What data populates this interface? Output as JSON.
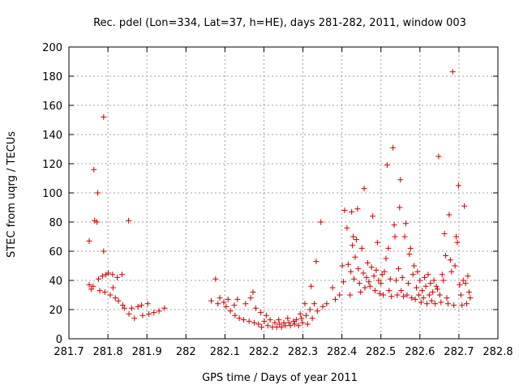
{
  "chart_data": {
    "type": "scatter",
    "title": "Rec. pdel (Lon=334, Lat=37, h=HE), days 281-282, 2011, window 003",
    "xlabel": "GPS time / Days of year 2011",
    "ylabel": "STEC from uqrg / TECUs",
    "xlim": [
      281.7,
      282.8
    ],
    "ylim": [
      0,
      200
    ],
    "x_ticks": [
      281.7,
      281.8,
      281.9,
      282.0,
      282.1,
      282.2,
      282.3,
      282.4,
      282.5,
      282.6,
      282.7,
      282.8
    ],
    "x_tick_labels": [
      "281.7",
      "281.8",
      "281.9",
      "282",
      "282.1",
      "282.2",
      "282.3",
      "282.4",
      "282.5",
      "282.6",
      "282.7",
      "282.8"
    ],
    "y_ticks": [
      0,
      20,
      40,
      60,
      80,
      100,
      120,
      140,
      160,
      180,
      200
    ],
    "y_tick_labels": [
      "0",
      "20",
      "40",
      "60",
      "80",
      "100",
      "120",
      "140",
      "160",
      "180",
      "200"
    ],
    "grid": true,
    "marker": "+",
    "color": "#cc0000",
    "points": [
      [
        281.752,
        67
      ],
      [
        281.752,
        37
      ],
      [
        281.757,
        34
      ],
      [
        281.762,
        36
      ],
      [
        281.764,
        116
      ],
      [
        281.766,
        81
      ],
      [
        281.772,
        80
      ],
      [
        281.774,
        100
      ],
      [
        281.776,
        41
      ],
      [
        281.779,
        33
      ],
      [
        281.786,
        43
      ],
      [
        281.789,
        152
      ],
      [
        281.789,
        60
      ],
      [
        281.792,
        32
      ],
      [
        281.795,
        44
      ],
      [
        281.801,
        45
      ],
      [
        281.806,
        30
      ],
      [
        281.812,
        44
      ],
      [
        281.813,
        35
      ],
      [
        281.819,
        28
      ],
      [
        281.824,
        42
      ],
      [
        281.827,
        26
      ],
      [
        281.836,
        44
      ],
      [
        281.838,
        23
      ],
      [
        281.842,
        21
      ],
      [
        281.853,
        81
      ],
      [
        281.854,
        17
      ],
      [
        281.861,
        21
      ],
      [
        281.868,
        14
      ],
      [
        281.877,
        22
      ],
      [
        281.886,
        23
      ],
      [
        281.889,
        16
      ],
      [
        281.902,
        24
      ],
      [
        281.905,
        17
      ],
      [
        281.918,
        18
      ],
      [
        281.931,
        19
      ],
      [
        281.945,
        21
      ],
      [
        282.065,
        26
      ],
      [
        282.076,
        41
      ],
      [
        282.082,
        24
      ],
      [
        282.087,
        28
      ],
      [
        282.097,
        25
      ],
      [
        282.103,
        22
      ],
      [
        282.108,
        27
      ],
      [
        282.114,
        19
      ],
      [
        282.124,
        23
      ],
      [
        282.126,
        16
      ],
      [
        282.132,
        27
      ],
      [
        282.137,
        14
      ],
      [
        282.148,
        13
      ],
      [
        282.153,
        24
      ],
      [
        282.162,
        12
      ],
      [
        282.166,
        28
      ],
      [
        282.172,
        32
      ],
      [
        282.175,
        11
      ],
      [
        282.179,
        21
      ],
      [
        282.186,
        10
      ],
      [
        282.192,
        18
      ],
      [
        282.194,
        8
      ],
      [
        282.201,
        12
      ],
      [
        282.206,
        16
      ],
      [
        282.21,
        9
      ],
      [
        282.216,
        13
      ],
      [
        282.222,
        8
      ],
      [
        282.228,
        11
      ],
      [
        282.233,
        8
      ],
      [
        282.238,
        13
      ],
      [
        282.24,
        10
      ],
      [
        282.245,
        8
      ],
      [
        282.251,
        11
      ],
      [
        282.255,
        9
      ],
      [
        282.261,
        14
      ],
      [
        282.264,
        11
      ],
      [
        282.268,
        9
      ],
      [
        282.276,
        12
      ],
      [
        282.279,
        10
      ],
      [
        282.283,
        13
      ],
      [
        282.289,
        9
      ],
      [
        282.293,
        17
      ],
      [
        282.296,
        14
      ],
      [
        282.299,
        11
      ],
      [
        282.305,
        24
      ],
      [
        282.308,
        16
      ],
      [
        282.312,
        10
      ],
      [
        282.318,
        20
      ],
      [
        282.321,
        36
      ],
      [
        282.324,
        14
      ],
      [
        282.329,
        24
      ],
      [
        282.334,
        53
      ],
      [
        282.337,
        19
      ],
      [
        282.346,
        80
      ],
      [
        282.351,
        22
      ],
      [
        282.361,
        24
      ],
      [
        282.376,
        35
      ],
      [
        282.383,
        27
      ],
      [
        282.394,
        30
      ],
      [
        282.401,
        50
      ],
      [
        282.404,
        39
      ],
      [
        282.407,
        88
      ],
      [
        282.413,
        76
      ],
      [
        282.416,
        51
      ],
      [
        282.421,
        30
      ],
      [
        282.423,
        46
      ],
      [
        282.425,
        87
      ],
      [
        282.427,
        64
      ],
      [
        282.429,
        70
      ],
      [
        282.431,
        41
      ],
      [
        282.434,
        56
      ],
      [
        282.437,
        68
      ],
      [
        282.44,
        89
      ],
      [
        282.442,
        48
      ],
      [
        282.445,
        38
      ],
      [
        282.448,
        32
      ],
      [
        282.451,
        62
      ],
      [
        282.455,
        45
      ],
      [
        282.457,
        103
      ],
      [
        282.459,
        35
      ],
      [
        282.463,
        42
      ],
      [
        282.466,
        52
      ],
      [
        282.469,
        39
      ],
      [
        282.472,
        36
      ],
      [
        282.476,
        49
      ],
      [
        282.479,
        84
      ],
      [
        282.482,
        43
      ],
      [
        282.485,
        33
      ],
      [
        282.488,
        47
      ],
      [
        282.491,
        66
      ],
      [
        282.494,
        40
      ],
      [
        282.497,
        31
      ],
      [
        282.5,
        38
      ],
      [
        282.503,
        44
      ],
      [
        282.506,
        30
      ],
      [
        282.509,
        46
      ],
      [
        282.513,
        55
      ],
      [
        282.516,
        119
      ],
      [
        282.519,
        62
      ],
      [
        282.521,
        33
      ],
      [
        282.524,
        41
      ],
      [
        282.527,
        29
      ],
      [
        282.531,
        131
      ],
      [
        282.534,
        78
      ],
      [
        282.536,
        70
      ],
      [
        282.539,
        40
      ],
      [
        282.542,
        30
      ],
      [
        282.545,
        48
      ],
      [
        282.548,
        90
      ],
      [
        282.55,
        109
      ],
      [
        282.552,
        33
      ],
      [
        282.555,
        42
      ],
      [
        282.558,
        29
      ],
      [
        282.561,
        70
      ],
      [
        282.564,
        79
      ],
      [
        282.567,
        30
      ],
      [
        282.57,
        38
      ],
      [
        282.573,
        58
      ],
      [
        282.576,
        62
      ],
      [
        282.579,
        28
      ],
      [
        282.582,
        44
      ],
      [
        282.585,
        50
      ],
      [
        282.588,
        27
      ],
      [
        282.591,
        35
      ],
      [
        282.594,
        46
      ],
      [
        282.597,
        30
      ],
      [
        282.6,
        40
      ],
      [
        282.603,
        25
      ],
      [
        282.606,
        33
      ],
      [
        282.609,
        28
      ],
      [
        282.612,
        42
      ],
      [
        282.615,
        36
      ],
      [
        282.618,
        24
      ],
      [
        282.621,
        44
      ],
      [
        282.624,
        30
      ],
      [
        282.627,
        38
      ],
      [
        282.63,
        26
      ],
      [
        282.633,
        32
      ],
      [
        282.636,
        40
      ],
      [
        282.639,
        24
      ],
      [
        282.642,
        36
      ],
      [
        282.645,
        34
      ],
      [
        282.648,
        125
      ],
      [
        282.651,
        30
      ],
      [
        282.654,
        25
      ],
      [
        282.657,
        44
      ],
      [
        282.66,
        40
      ],
      [
        282.663,
        72
      ],
      [
        282.666,
        57
      ],
      [
        282.669,
        28
      ],
      [
        282.672,
        24
      ],
      [
        282.675,
        85
      ],
      [
        282.678,
        54
      ],
      [
        282.681,
        46
      ],
      [
        282.684,
        183
      ],
      [
        282.687,
        23
      ],
      [
        282.69,
        50
      ],
      [
        282.693,
        70
      ],
      [
        282.696,
        66
      ],
      [
        282.699,
        105
      ],
      [
        282.702,
        37
      ],
      [
        282.705,
        30
      ],
      [
        282.708,
        23
      ],
      [
        282.711,
        40
      ],
      [
        282.714,
        91
      ],
      [
        282.717,
        38
      ],
      [
        282.72,
        24
      ],
      [
        282.723,
        43
      ],
      [
        282.726,
        32
      ],
      [
        282.729,
        28
      ]
    ]
  }
}
